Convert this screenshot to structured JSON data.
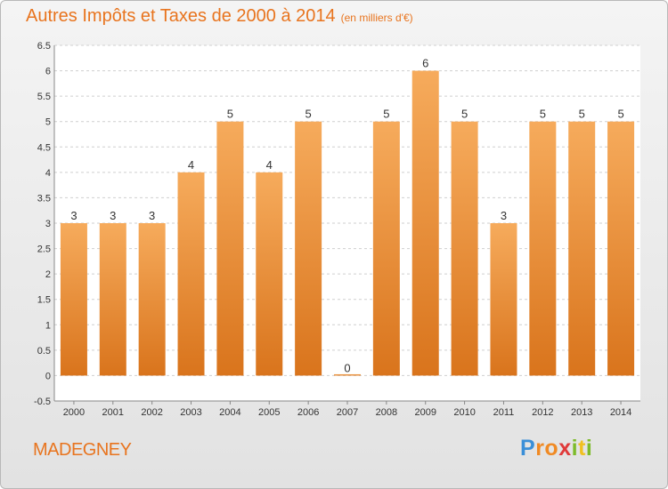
{
  "chart_data": {
    "type": "bar",
    "title": "Autres Impôts et Taxes de 2000 à 2014",
    "subtitle": "(en milliers d'€)",
    "categories": [
      "2000",
      "2001",
      "2002",
      "2003",
      "2004",
      "2005",
      "2006",
      "2007",
      "2008",
      "2009",
      "2010",
      "2011",
      "2012",
      "2013",
      "2014"
    ],
    "values": [
      3,
      3,
      3,
      4,
      5,
      4,
      5,
      0,
      5,
      6,
      5,
      3,
      5,
      5,
      5
    ],
    "data_labels": [
      "3",
      "3",
      "3",
      "4",
      "5",
      "4",
      "5",
      "0",
      "5",
      "6",
      "5",
      "3",
      "5",
      "5",
      "5"
    ],
    "yticks": [
      "-0.5",
      "0",
      "0.5",
      "1",
      "1.5",
      "2",
      "2.5",
      "3",
      "3.5",
      "4",
      "4.5",
      "5",
      "5.5",
      "6",
      "6.5"
    ],
    "ylim": [
      -0.5,
      6.5
    ],
    "grid": true,
    "bar_color": "#f0902f",
    "bar_color_light": "#f6ab5c",
    "bar_color_dark": "#d9741c"
  },
  "commune": "MADEGNEY",
  "logo": {
    "letters": [
      "P",
      "r",
      "o",
      "x",
      "i",
      "t",
      "i"
    ],
    "colors": [
      "#3a8fd8",
      "#f08a24",
      "#f08a24",
      "#e03a3a",
      "#7dbb2a",
      "#f0c020",
      "#7dbb2a"
    ]
  }
}
